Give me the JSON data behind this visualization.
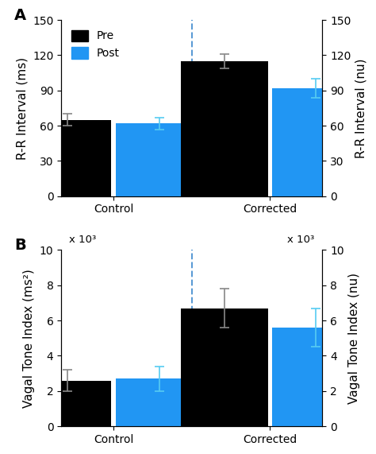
{
  "panel_A": {
    "title": "A",
    "ylabel_left": "R-R Interval (ms)",
    "ylabel_right": "R-R Interval (nu)",
    "ylim": [
      0,
      150
    ],
    "yticks": [
      0,
      30,
      60,
      90,
      120,
      150
    ],
    "groups": [
      "Control",
      "Corrected"
    ],
    "pre_values": [
      65,
      115
    ],
    "post_values": [
      62,
      92
    ],
    "pre_errors": [
      5,
      6
    ],
    "post_errors": [
      5,
      8
    ],
    "significance": [
      false,
      true
    ],
    "bar_width": 0.35,
    "group_centers": [
      0.2,
      0.8
    ],
    "dashed_line_x": 0.5,
    "bar_color_pre": "#000000",
    "bar_color_post": "#2196F3",
    "scale_label": null
  },
  "panel_B": {
    "title": "B",
    "ylabel_left": "Vagal Tone Index (ms²)",
    "ylabel_right": "Vagal Tone Index (nu)",
    "ylim": [
      0,
      10
    ],
    "yticks": [
      0,
      2,
      4,
      6,
      8,
      10
    ],
    "scale_label": "x 10³",
    "groups": [
      "Control",
      "Corrected"
    ],
    "pre_values": [
      2.6,
      6.7
    ],
    "post_values": [
      2.7,
      5.6
    ],
    "pre_errors": [
      0.6,
      1.1
    ],
    "post_errors": [
      0.7,
      1.1
    ],
    "significance": [
      false,
      false
    ],
    "bar_width": 0.35,
    "group_centers": [
      0.2,
      0.8
    ],
    "dashed_line_x": 0.5,
    "bar_color_pre": "#000000",
    "bar_color_post": "#2196F3"
  },
  "legend_labels": [
    "Pre",
    "Post"
  ],
  "background_color": "#ffffff",
  "tick_fontsize": 10,
  "label_fontsize": 11,
  "title_fontsize": 14
}
